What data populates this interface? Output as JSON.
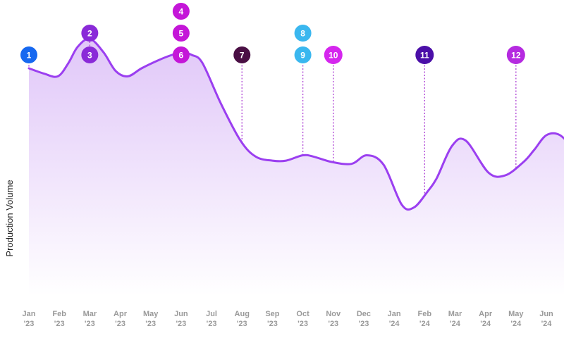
{
  "chart_data": {
    "type": "area",
    "title": "",
    "xlabel": "",
    "ylabel": "Production Volume",
    "ylim": [
      0,
      100
    ],
    "grid": false,
    "categories": [
      [
        "Jan",
        "'23"
      ],
      [
        "Feb",
        "'23"
      ],
      [
        "Mar",
        "'23"
      ],
      [
        "Apr",
        "'23"
      ],
      [
        "May",
        "'23"
      ],
      [
        "Jun",
        "'23"
      ],
      [
        "Jul",
        "'23"
      ],
      [
        "Aug",
        "'23"
      ],
      [
        "Sep",
        "'23"
      ],
      [
        "Oct",
        "'23"
      ],
      [
        "Nov",
        "'23"
      ],
      [
        "Dec",
        "'23"
      ],
      [
        "Jan",
        "'24"
      ],
      [
        "Feb",
        "'24"
      ],
      [
        "Mar",
        "'24"
      ],
      [
        "Apr",
        "'24"
      ],
      [
        "May",
        "'24"
      ],
      [
        "Jun",
        "'24"
      ]
    ],
    "series": [
      {
        "name": "Production Volume",
        "x": [
          0,
          0.5,
          0.95,
          1.3,
          1.6,
          2.0,
          2.45,
          2.85,
          3.25,
          3.7,
          4.25,
          4.7,
          5.05,
          5.35,
          5.7,
          6.3,
          6.95,
          7.45,
          8.0,
          8.45,
          9.0,
          9.35,
          9.95,
          10.6,
          11.1,
          11.65,
          12.25,
          12.65,
          13.1,
          13.4,
          13.9,
          14.35,
          15.1,
          15.65,
          16.25,
          16.6,
          17.0,
          17.45,
          17.95
        ],
        "values": [
          85,
          83,
          82,
          87,
          93,
          96,
          91,
          84,
          82,
          85,
          88,
          90,
          91,
          90,
          87,
          72,
          58,
          52,
          50.5,
          50.5,
          52.5,
          52,
          50,
          49.3,
          52.5,
          49,
          34,
          33,
          39,
          44,
          56,
          58,
          46,
          45,
          50,
          54.5,
          60,
          60,
          54
        ]
      }
    ],
    "markers": [
      {
        "label": "1",
        "x": 0,
        "row": 0,
        "color": "#1668f0"
      },
      {
        "label": "2",
        "x": 2,
        "row": 1,
        "color": "#8a2ad8"
      },
      {
        "label": "3",
        "x": 2,
        "row": 0,
        "color": "#8a2ad8"
      },
      {
        "label": "4",
        "x": 5,
        "row": 2,
        "color": "#c416d8"
      },
      {
        "label": "5",
        "x": 5,
        "row": 1,
        "color": "#c416d8"
      },
      {
        "label": "6",
        "x": 5,
        "row": 0,
        "color": "#c416d8"
      },
      {
        "label": "7",
        "x": 7,
        "row": 0,
        "color": "#4a0f44"
      },
      {
        "label": "8",
        "x": 9,
        "row": 1,
        "color": "#3ab7ef"
      },
      {
        "label": "9",
        "x": 9,
        "row": 0,
        "color": "#3ab7ef"
      },
      {
        "label": "10",
        "x": 10,
        "row": 0,
        "color": "#d526ee"
      },
      {
        "label": "11",
        "x": 13,
        "row": 0,
        "color": "#4b0fa8"
      },
      {
        "label": "12",
        "x": 16,
        "row": 0,
        "color": "#b52ae0"
      }
    ],
    "colors": {
      "line": "#9b3ff0",
      "fill_top": "#dfc4f8",
      "fill_bottom": "#ffffff",
      "stem": "#b34fd8"
    }
  }
}
